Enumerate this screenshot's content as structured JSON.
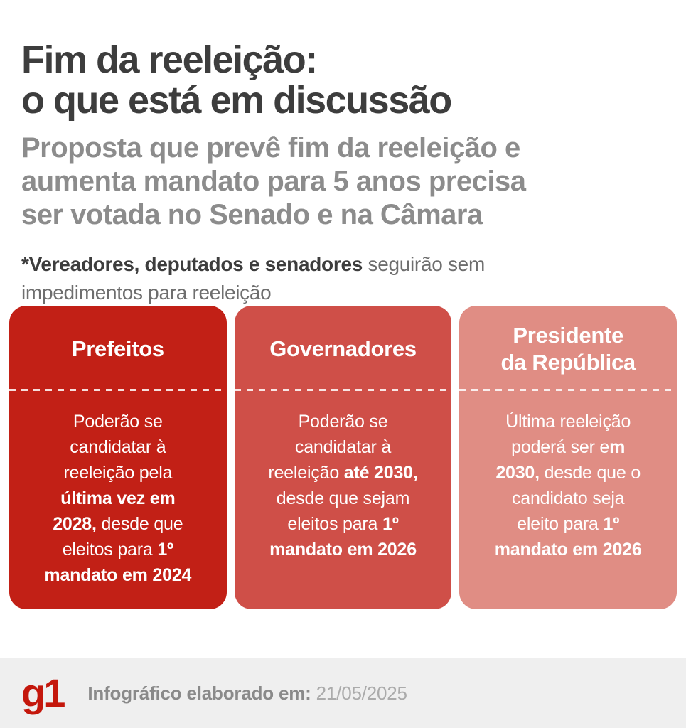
{
  "header": {
    "title_lines": [
      "Fim da reeleição:",
      "o que está em discussão"
    ],
    "subtitle_lines": [
      "Proposta que prevê fim da reeleição e",
      "aumenta mandato para 5 anos precisa",
      "ser votada no Senado e na Câmara"
    ],
    "note": {
      "bold": "*Vereadores, deputados e senadores",
      "rest_line1": " seguirão sem",
      "rest_line2": "impedimentos para reeleição"
    }
  },
  "cards": [
    {
      "title": "Prefeitos",
      "color": "#c22016",
      "body": [
        {
          "text": "Poderão se\ncandidatar à\nreeleição pela\n",
          "bold": false
        },
        {
          "text": "última vez em\n2028,",
          "bold": true
        },
        {
          "text": " desde que\neleitos para ",
          "bold": false
        },
        {
          "text": "1º\nmandato em 2024",
          "bold": true
        }
      ]
    },
    {
      "title": "Governadores",
      "color": "#cf4f48",
      "body": [
        {
          "text": "Poderão se\ncandidatar à\nreeleição ",
          "bold": false
        },
        {
          "text": "até 2030,",
          "bold": true
        },
        {
          "text": "\ndesde que sejam\neleitos para ",
          "bold": false
        },
        {
          "text": "1º\nmandato em 2026",
          "bold": true
        }
      ]
    },
    {
      "title": "Presidente\nda República",
      "color": "#e08d84",
      "body": [
        {
          "text": "Última reeleição\npoderá ser e",
          "bold": false
        },
        {
          "text": "m\n2030,",
          "bold": true
        },
        {
          "text": " desde que o\ncandidato seja\neleito para ",
          "bold": false
        },
        {
          "text": "1º\nmandato em 2026",
          "bold": true
        }
      ]
    }
  ],
  "footer": {
    "logo_text": "g1",
    "logo_color": "#c4170c",
    "background": "#efefef",
    "label": "Infográfico elaborado em:",
    "date": " 21/05/2025"
  }
}
